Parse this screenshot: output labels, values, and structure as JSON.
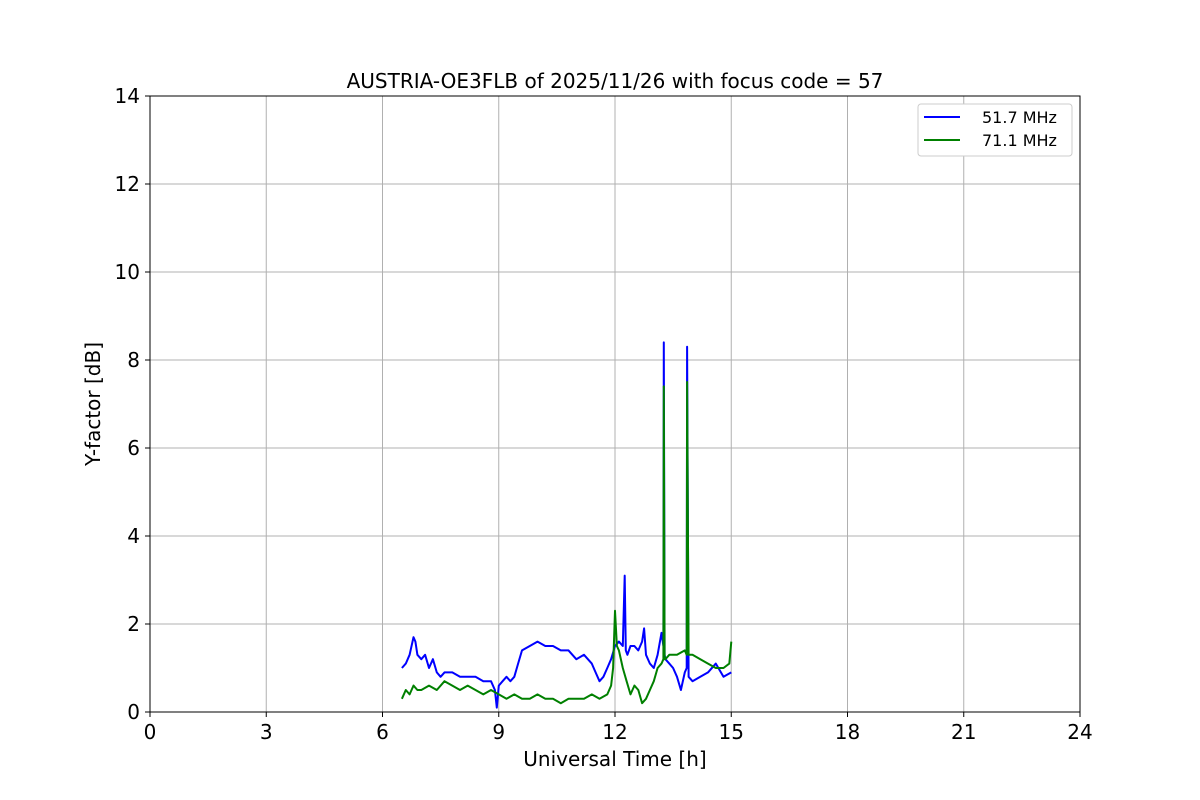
{
  "chart_data": {
    "type": "line",
    "title": "AUSTRIA-OE3FLB of 2025/11/26 with focus code = 57",
    "xlabel": "Universal Time [h]",
    "ylabel": "Y-factor [dB]",
    "xlim": [
      0,
      24
    ],
    "ylim": [
      0,
      14
    ],
    "xticks": [
      0,
      3,
      6,
      9,
      12,
      15,
      18,
      21,
      24
    ],
    "yticks": [
      0,
      2,
      4,
      6,
      8,
      10,
      12,
      14
    ],
    "grid": true,
    "legend_position": "top-right",
    "series": [
      {
        "name": "51.7 MHz",
        "color": "#0000ff",
        "x": [
          6.5,
          6.6,
          6.7,
          6.8,
          6.85,
          6.9,
          7.0,
          7.1,
          7.2,
          7.3,
          7.4,
          7.5,
          7.6,
          7.8,
          8.0,
          8.2,
          8.4,
          8.6,
          8.8,
          8.9,
          8.95,
          9.0,
          9.1,
          9.2,
          9.3,
          9.4,
          9.5,
          9.6,
          9.8,
          10.0,
          10.2,
          10.4,
          10.6,
          10.8,
          11.0,
          11.2,
          11.4,
          11.5,
          11.6,
          11.7,
          11.8,
          11.9,
          12.0,
          12.1,
          12.2,
          12.25,
          12.28,
          12.32,
          12.4,
          12.5,
          12.6,
          12.7,
          12.75,
          12.8,
          12.9,
          13.0,
          13.1,
          13.2,
          13.25,
          13.26,
          13.28,
          13.3,
          13.4,
          13.5,
          13.6,
          13.7,
          13.8,
          13.85,
          13.86,
          13.9,
          14.0,
          14.2,
          14.4,
          14.6,
          14.8,
          15.0
        ],
        "y": [
          1.0,
          1.1,
          1.3,
          1.7,
          1.6,
          1.3,
          1.2,
          1.3,
          1.0,
          1.2,
          0.9,
          0.8,
          0.9,
          0.9,
          0.8,
          0.8,
          0.8,
          0.7,
          0.7,
          0.5,
          0.1,
          0.6,
          0.7,
          0.8,
          0.7,
          0.8,
          1.1,
          1.4,
          1.5,
          1.6,
          1.5,
          1.5,
          1.4,
          1.4,
          1.2,
          1.3,
          1.1,
          0.9,
          0.7,
          0.8,
          1.0,
          1.2,
          1.5,
          1.6,
          1.5,
          3.1,
          1.4,
          1.3,
          1.5,
          1.5,
          1.4,
          1.6,
          1.9,
          1.3,
          1.1,
          1.0,
          1.3,
          1.8,
          1.5,
          8.4,
          1.3,
          1.2,
          1.1,
          1.0,
          0.8,
          0.5,
          0.9,
          1.0,
          8.3,
          0.8,
          0.7,
          0.8,
          0.9,
          1.1,
          0.8,
          0.9
        ]
      },
      {
        "name": "71.1 MHz",
        "color": "#008000",
        "x": [
          6.5,
          6.6,
          6.7,
          6.8,
          6.9,
          7.0,
          7.2,
          7.4,
          7.6,
          7.8,
          8.0,
          8.2,
          8.4,
          8.6,
          8.8,
          9.0,
          9.2,
          9.4,
          9.6,
          9.8,
          10.0,
          10.2,
          10.4,
          10.6,
          10.8,
          11.0,
          11.2,
          11.4,
          11.6,
          11.8,
          11.9,
          11.95,
          12.0,
          12.05,
          12.1,
          12.2,
          12.3,
          12.4,
          12.5,
          12.6,
          12.7,
          12.8,
          12.9,
          13.0,
          13.1,
          13.2,
          13.25,
          13.26,
          13.28,
          13.3,
          13.4,
          13.6,
          13.8,
          13.85,
          13.86,
          13.9,
          14.0,
          14.2,
          14.4,
          14.6,
          14.8,
          14.95,
          15.0
        ],
        "y": [
          0.3,
          0.5,
          0.4,
          0.6,
          0.5,
          0.5,
          0.6,
          0.5,
          0.7,
          0.6,
          0.5,
          0.6,
          0.5,
          0.4,
          0.5,
          0.4,
          0.3,
          0.4,
          0.3,
          0.3,
          0.4,
          0.3,
          0.3,
          0.2,
          0.3,
          0.3,
          0.3,
          0.4,
          0.3,
          0.4,
          0.6,
          1.0,
          2.3,
          1.5,
          1.4,
          1.0,
          0.7,
          0.4,
          0.6,
          0.5,
          0.2,
          0.3,
          0.5,
          0.7,
          1.0,
          1.1,
          1.2,
          7.4,
          1.2,
          1.2,
          1.3,
          1.3,
          1.4,
          1.3,
          7.5,
          1.3,
          1.3,
          1.2,
          1.1,
          1.0,
          1.0,
          1.1,
          1.6
        ]
      }
    ]
  }
}
